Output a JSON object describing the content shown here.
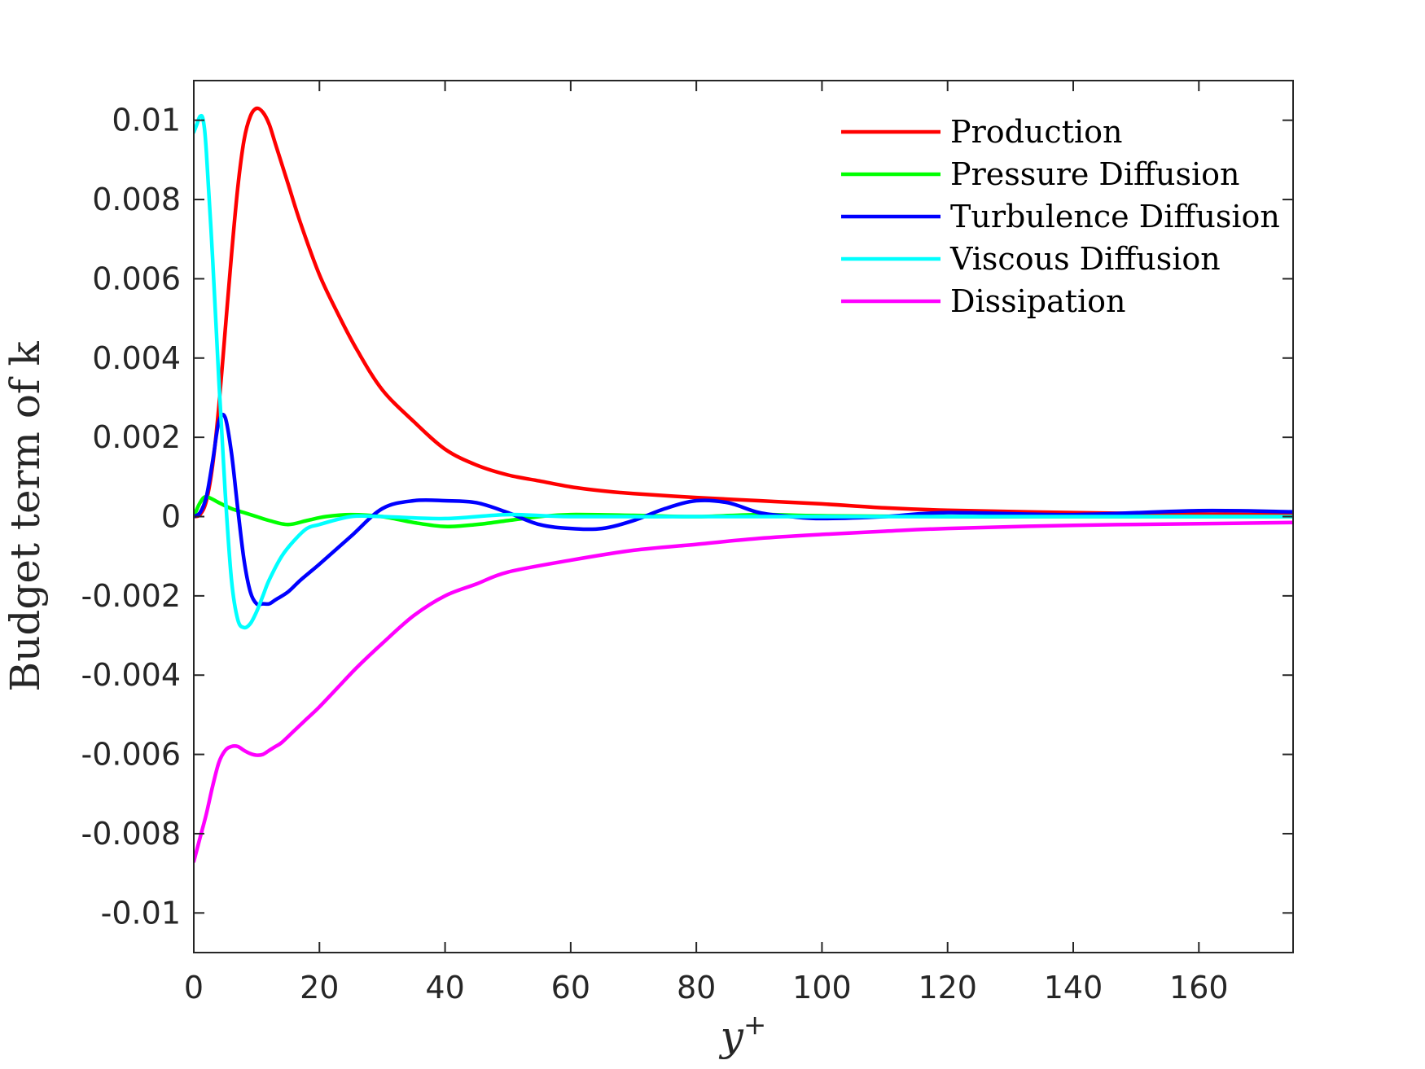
{
  "chart_data": {
    "type": "line",
    "title": "",
    "xlabel": "y",
    "xlabel_superscript": "+",
    "ylabel": "Budget term of k",
    "xlim": [
      0,
      175
    ],
    "ylim": [
      -0.011,
      0.011
    ],
    "x_ticks": [
      0,
      20,
      40,
      60,
      80,
      100,
      120,
      140,
      160
    ],
    "x_tick_labels": [
      "0",
      "20",
      "40",
      "60",
      "80",
      "100",
      "120",
      "140",
      "160"
    ],
    "y_ticks": [
      0.01,
      0.008,
      0.006,
      0.004,
      0.002,
      0,
      -0.002,
      -0.004,
      -0.006,
      -0.008,
      -0.01
    ],
    "y_tick_labels": [
      "0.01",
      "0.008",
      "0.006",
      "0.004",
      "0.002",
      "0",
      "-0.002",
      "-0.004",
      "-0.006",
      "-0.008",
      "-0.01"
    ],
    "grid": false,
    "legend_position": "top-right",
    "series": [
      {
        "name": "Production",
        "color": "#ff0000",
        "x": [
          0,
          1,
          2,
          3,
          4,
          5,
          6,
          7,
          8,
          9,
          10,
          11,
          12,
          13,
          15,
          17,
          20,
          23,
          26,
          30,
          35,
          40,
          45,
          50,
          55,
          60,
          65,
          70,
          80,
          90,
          100,
          110,
          120,
          140,
          160,
          175
        ],
        "y": [
          0,
          5e-05,
          0.0004,
          0.0013,
          0.0028,
          0.0047,
          0.0066,
          0.0083,
          0.0095,
          0.0101,
          0.0103,
          0.0102,
          0.0099,
          0.0094,
          0.0084,
          0.0074,
          0.0061,
          0.0051,
          0.0042,
          0.0032,
          0.0024,
          0.0017,
          0.0013,
          0.00105,
          0.0009,
          0.00075,
          0.00065,
          0.00058,
          0.00048,
          0.0004,
          0.00032,
          0.00022,
          0.00016,
          0.0001,
          6e-05,
          5e-05
        ]
      },
      {
        "name": "Pressure Diffusion",
        "color": "#00ff00",
        "x": [
          0,
          1,
          2,
          4,
          6,
          8,
          10,
          12,
          15,
          18,
          21,
          25,
          30,
          35,
          40,
          45,
          50,
          55,
          60,
          70,
          80,
          90,
          100,
          120,
          140,
          160,
          175
        ],
        "y": [
          0,
          0.00035,
          0.0005,
          0.00035,
          0.0002,
          0.0001,
          0,
          -0.0001,
          -0.0002,
          -0.0001,
          0,
          5e-05,
          0,
          -0.00015,
          -0.00025,
          -0.0002,
          -0.0001,
          0,
          5e-05,
          3e-05,
          0,
          5e-05,
          2e-05,
          0,
          0,
          0,
          0
        ]
      },
      {
        "name": "Turbulence Diffusion",
        "color": "#0000ff",
        "x": [
          0,
          1,
          2,
          3,
          4,
          5,
          6,
          7,
          8,
          9,
          10,
          11,
          12,
          13,
          15,
          17,
          20,
          25,
          30,
          35,
          40,
          45,
          50,
          55,
          60,
          65,
          70,
          75,
          80,
          85,
          90,
          95,
          100,
          110,
          120,
          140,
          160,
          175
        ],
        "y": [
          0,
          0.0001,
          0.0005,
          0.0014,
          0.0024,
          0.0025,
          0.0016,
          0.0002,
          -0.0011,
          -0.0019,
          -0.0022,
          -0.0022,
          -0.0022,
          -0.0021,
          -0.0019,
          -0.0016,
          -0.0012,
          -0.0005,
          0.0002,
          0.0004,
          0.0004,
          0.00035,
          0.0001,
          -0.0002,
          -0.0003,
          -0.0003,
          -0.0001,
          0.0002,
          0.0004,
          0.00035,
          0.0001,
          0,
          -5e-05,
          0,
          0.0001,
          5e-05,
          0.00015,
          0.00012
        ]
      },
      {
        "name": "Viscous Diffusion",
        "color": "#00ffff",
        "x": [
          0,
          0.5,
          1,
          1.5,
          2,
          3,
          4,
          5,
          6,
          7,
          8,
          9,
          10,
          11,
          12,
          14,
          16,
          18,
          20,
          25,
          30,
          40,
          50,
          60,
          80,
          100,
          120,
          140,
          160,
          175
        ],
        "y": [
          0.0097,
          0.0099,
          0.0101,
          0.01,
          0.0092,
          0.0065,
          0.0034,
          0.0006,
          -0.0016,
          -0.0026,
          -0.0028,
          -0.0027,
          -0.0024,
          -0.002,
          -0.0016,
          -0.001,
          -0.0006,
          -0.0003,
          -0.0002,
          0,
          0,
          -5e-05,
          5e-05,
          0,
          0,
          0,
          0,
          0,
          0,
          0
        ]
      },
      {
        "name": "Dissipation",
        "color": "#ff00ff",
        "x": [
          0,
          1,
          2,
          3,
          4,
          5,
          6,
          7,
          8,
          9,
          10,
          11,
          12,
          13,
          14,
          16,
          18,
          20,
          23,
          26,
          30,
          35,
          40,
          45,
          50,
          60,
          70,
          80,
          90,
          100,
          110,
          120,
          140,
          160,
          175
        ],
        "y": [
          -0.0087,
          -0.0081,
          -0.0075,
          -0.0068,
          -0.0062,
          -0.0059,
          -0.0058,
          -0.0058,
          -0.0059,
          -0.00598,
          -0.00602,
          -0.006,
          -0.0059,
          -0.0058,
          -0.0057,
          -0.0054,
          -0.0051,
          -0.0048,
          -0.0043,
          -0.0038,
          -0.0032,
          -0.0025,
          -0.002,
          -0.0017,
          -0.0014,
          -0.0011,
          -0.00085,
          -0.0007,
          -0.00055,
          -0.00045,
          -0.00037,
          -0.0003,
          -0.00022,
          -0.00018,
          -0.00015
        ]
      }
    ]
  }
}
